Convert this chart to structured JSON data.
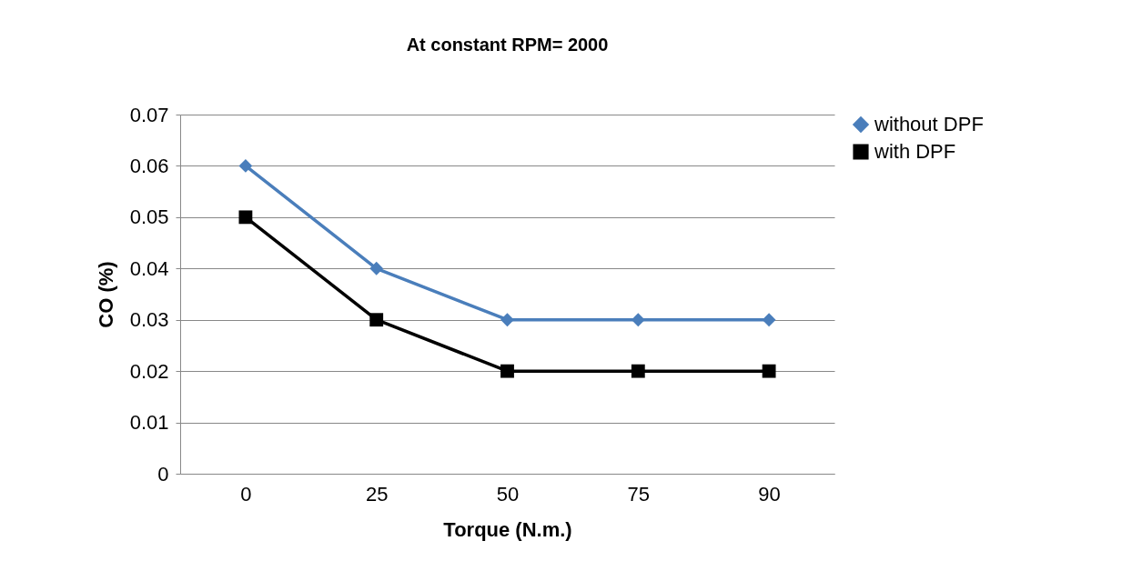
{
  "chart_data": {
    "type": "line",
    "title": "At constant RPM= 2000",
    "xlabel": "Torque (N.m.)",
    "ylabel": "CO (%)",
    "categories": [
      "0",
      "25",
      "50",
      "75",
      "90"
    ],
    "series": [
      {
        "name": "without DPF",
        "color": "#4a7ebb",
        "marker": "diamond",
        "values": [
          0.06,
          0.04,
          0.03,
          0.03,
          0.03
        ]
      },
      {
        "name": "with DPF",
        "color": "#000000",
        "marker": "square",
        "values": [
          0.05,
          0.03,
          0.02,
          0.02,
          0.02
        ]
      }
    ],
    "ylim": [
      0,
      0.07
    ],
    "yticks": [
      0,
      0.01,
      0.02,
      0.03,
      0.04,
      0.05,
      0.06,
      0.07
    ],
    "grid": "y",
    "legend": "right"
  }
}
